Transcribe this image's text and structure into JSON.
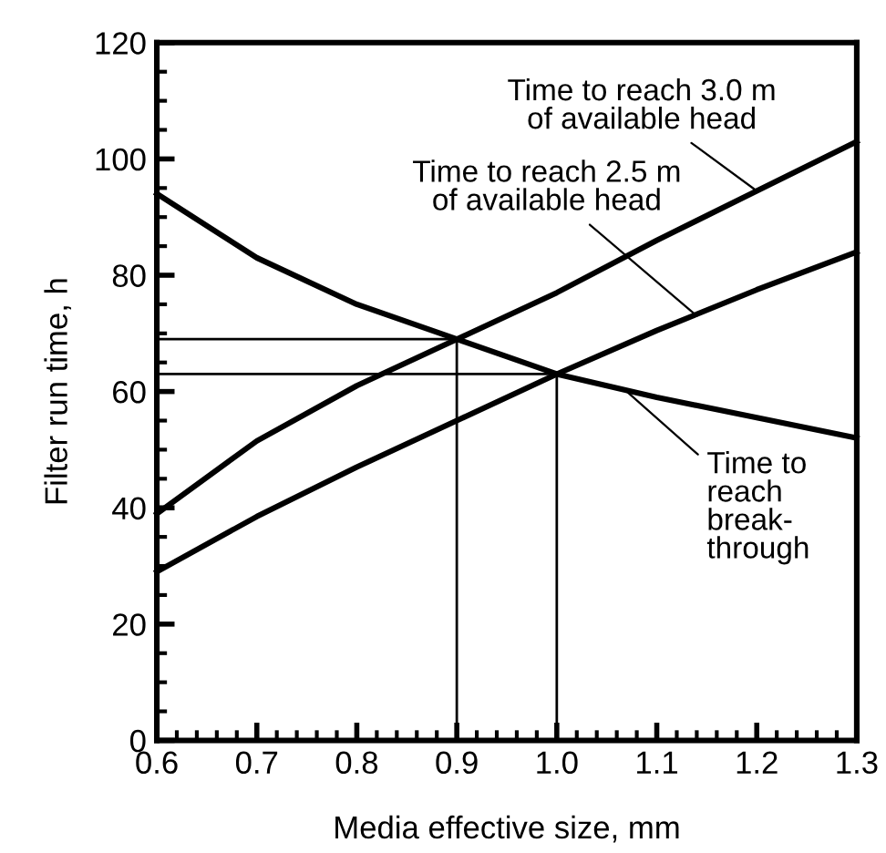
{
  "chart_data": {
    "type": "line",
    "xlabel": "Media effective size, mm",
    "ylabel": "Filter run time, h",
    "x": [
      0.6,
      0.7,
      0.8,
      0.9,
      1.0,
      1.1,
      1.2,
      1.3
    ],
    "series": [
      {
        "color": "#000000",
        "values": [
          39,
          51.5,
          61,
          69,
          77,
          86,
          94.5,
          103
        ]
      },
      {
        "color": "#000000",
        "values": [
          29,
          38.5,
          47,
          55,
          63,
          70.5,
          77.5,
          84
        ]
      },
      {
        "color": "#000000",
        "values": [
          94,
          83,
          75,
          69,
          63,
          59,
          55.5,
          52
        ]
      },
      {
        "color": "#000000",
        "x": [
          0.6,
          0.9,
          0.9
        ],
        "values": [
          69,
          69,
          0
        ],
        "line_style": "solid"
      },
      {
        "color": "#000000",
        "x": [
          0.6,
          1.0,
          1.0
        ],
        "values": [
          63,
          63,
          0
        ],
        "line_style": "solid"
      }
    ],
    "annotations": [
      {
        "text": "Time to reach 3.0 m\nof available head",
        "x": 1.2,
        "y": 94.5
      },
      {
        "text": "Time to reach 2.5 m\nof available head",
        "x": 1.14,
        "y": 73
      },
      {
        "text": "Time to\nreach\nbreak-\nthrough",
        "x": 1.07,
        "y": 60
      }
    ],
    "xlim": [
      0.6,
      1.3
    ],
    "xticks": [
      {
        "value": 0.6,
        "label": "0.6"
      },
      {
        "value": 0.7,
        "label": "0.7"
      },
      {
        "value": 0.8,
        "label": "0.8"
      },
      {
        "value": 0.9,
        "label": "0.9"
      },
      {
        "value": 1.0,
        "label": "1.0"
      },
      {
        "value": 1.1,
        "label": "1.1"
      },
      {
        "value": 1.2,
        "label": "1.2"
      },
      {
        "value": 1.3,
        "label": "1.3"
      }
    ],
    "ylim": [
      0,
      120
    ],
    "yticks": [
      0,
      20,
      40,
      60,
      80,
      100,
      120
    ],
    "grid": false,
    "legend": false,
    "marker": "none",
    "line_style": "solid"
  }
}
